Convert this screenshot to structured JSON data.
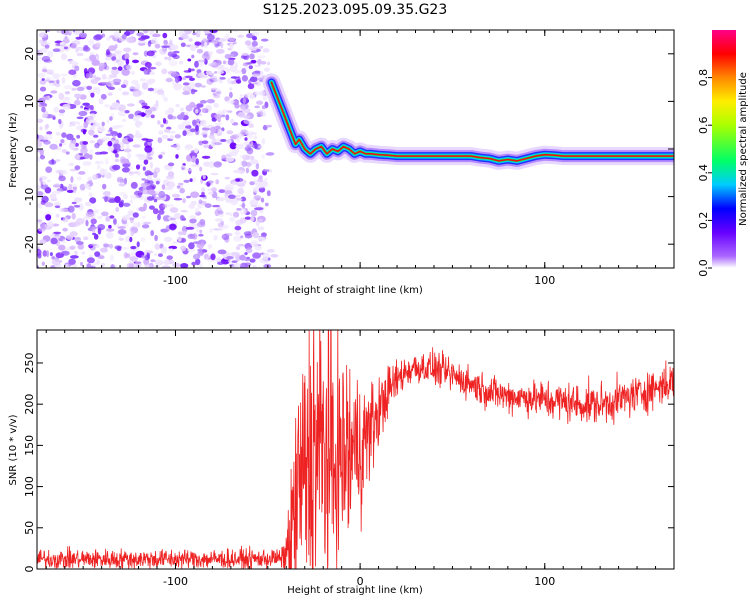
{
  "title": "S125.2023.095.09.35.G23",
  "colors": {
    "snr_line": "#ee2222",
    "ridge_core": "#ee1111",
    "frame": "#000000",
    "background": "#ffffff"
  },
  "chart_data": [
    {
      "type": "heatmap",
      "panel": "top",
      "xlabel": "Height of straight line (km)",
      "ylabel": "Frequency (Hz)",
      "xlim": [
        -175,
        170
      ],
      "ylim": [
        -25,
        25
      ],
      "xticks": [
        -100,
        0,
        100
      ],
      "xtick_labels": [
        "-100",
        "",
        "100"
      ],
      "yticks": [
        -20,
        -10,
        0,
        10,
        20
      ],
      "colormap": [
        "#ffffff",
        "#aa66ff",
        "#6600ff",
        "#0000ff",
        "#00ccff",
        "#00ff66",
        "#aaff00",
        "#ffee00",
        "#ff8800",
        "#ff0000",
        "#ff0088"
      ],
      "colorbar": {
        "label": "Normalized spectral amplitude",
        "ticks": [
          0.0,
          0.2,
          0.4,
          0.6,
          0.8
        ],
        "range": [
          0,
          1
        ]
      },
      "noise_region_x": [
        -175,
        -50
      ],
      "ridge": {
        "x": [
          -48,
          -45,
          -42,
          -39,
          -37,
          -35,
          -33,
          -30,
          -27,
          -24,
          -21,
          -18,
          -15,
          -12,
          -9,
          -6,
          -3,
          0,
          3,
          6,
          10,
          15,
          20,
          40,
          60,
          65,
          70,
          75,
          80,
          85,
          90,
          95,
          100,
          105,
          110,
          130,
          150,
          170
        ],
        "y": [
          14,
          11,
          8,
          5,
          3,
          1,
          2,
          0,
          -1,
          0,
          0.5,
          -1,
          0,
          -0.5,
          0.5,
          0,
          -1,
          -0.5,
          -1,
          -1,
          -1.2,
          -1.3,
          -1.5,
          -1.5,
          -1.5,
          -1.8,
          -2.0,
          -2.5,
          -2.2,
          -2.5,
          -2.0,
          -1.5,
          -1.2,
          -1.3,
          -1.5,
          -1.5,
          -1.5,
          -1.5
        ]
      }
    },
    {
      "type": "line",
      "panel": "bottom",
      "xlabel": "Height of straight line (km)",
      "ylabel": "SNR (10 * v/v)",
      "xlim": [
        -175,
        170
      ],
      "ylim": [
        0,
        290
      ],
      "xticks": [
        -100,
        0,
        100
      ],
      "xtick_labels": [
        "-100",
        "0",
        "100"
      ],
      "yticks": [
        0,
        50,
        100,
        150,
        200,
        250
      ],
      "envelope": {
        "x": [
          -175,
          -150,
          -100,
          -60,
          -42,
          -38,
          -35,
          -30,
          -25,
          -20,
          -15,
          -10,
          -5,
          0,
          5,
          10,
          15,
          20,
          25,
          30,
          35,
          40,
          50,
          60,
          70,
          80,
          90,
          100,
          110,
          120,
          130,
          140,
          150,
          160,
          170
        ],
        "mean": [
          12,
          12,
          12,
          12,
          13,
          30,
          80,
          120,
          150,
          140,
          130,
          135,
          140,
          150,
          165,
          190,
          215,
          230,
          240,
          245,
          245,
          243,
          235,
          225,
          215,
          210,
          208,
          205,
          203,
          200,
          200,
          205,
          212,
          220,
          228
        ],
        "spread": [
          6,
          6,
          6,
          6,
          6,
          30,
          60,
          80,
          100,
          90,
          80,
          70,
          60,
          45,
          30,
          22,
          15,
          12,
          10,
          10,
          10,
          10,
          10,
          10,
          10,
          10,
          10,
          12,
          12,
          12,
          12,
          12,
          12,
          12,
          12
        ]
      }
    }
  ]
}
